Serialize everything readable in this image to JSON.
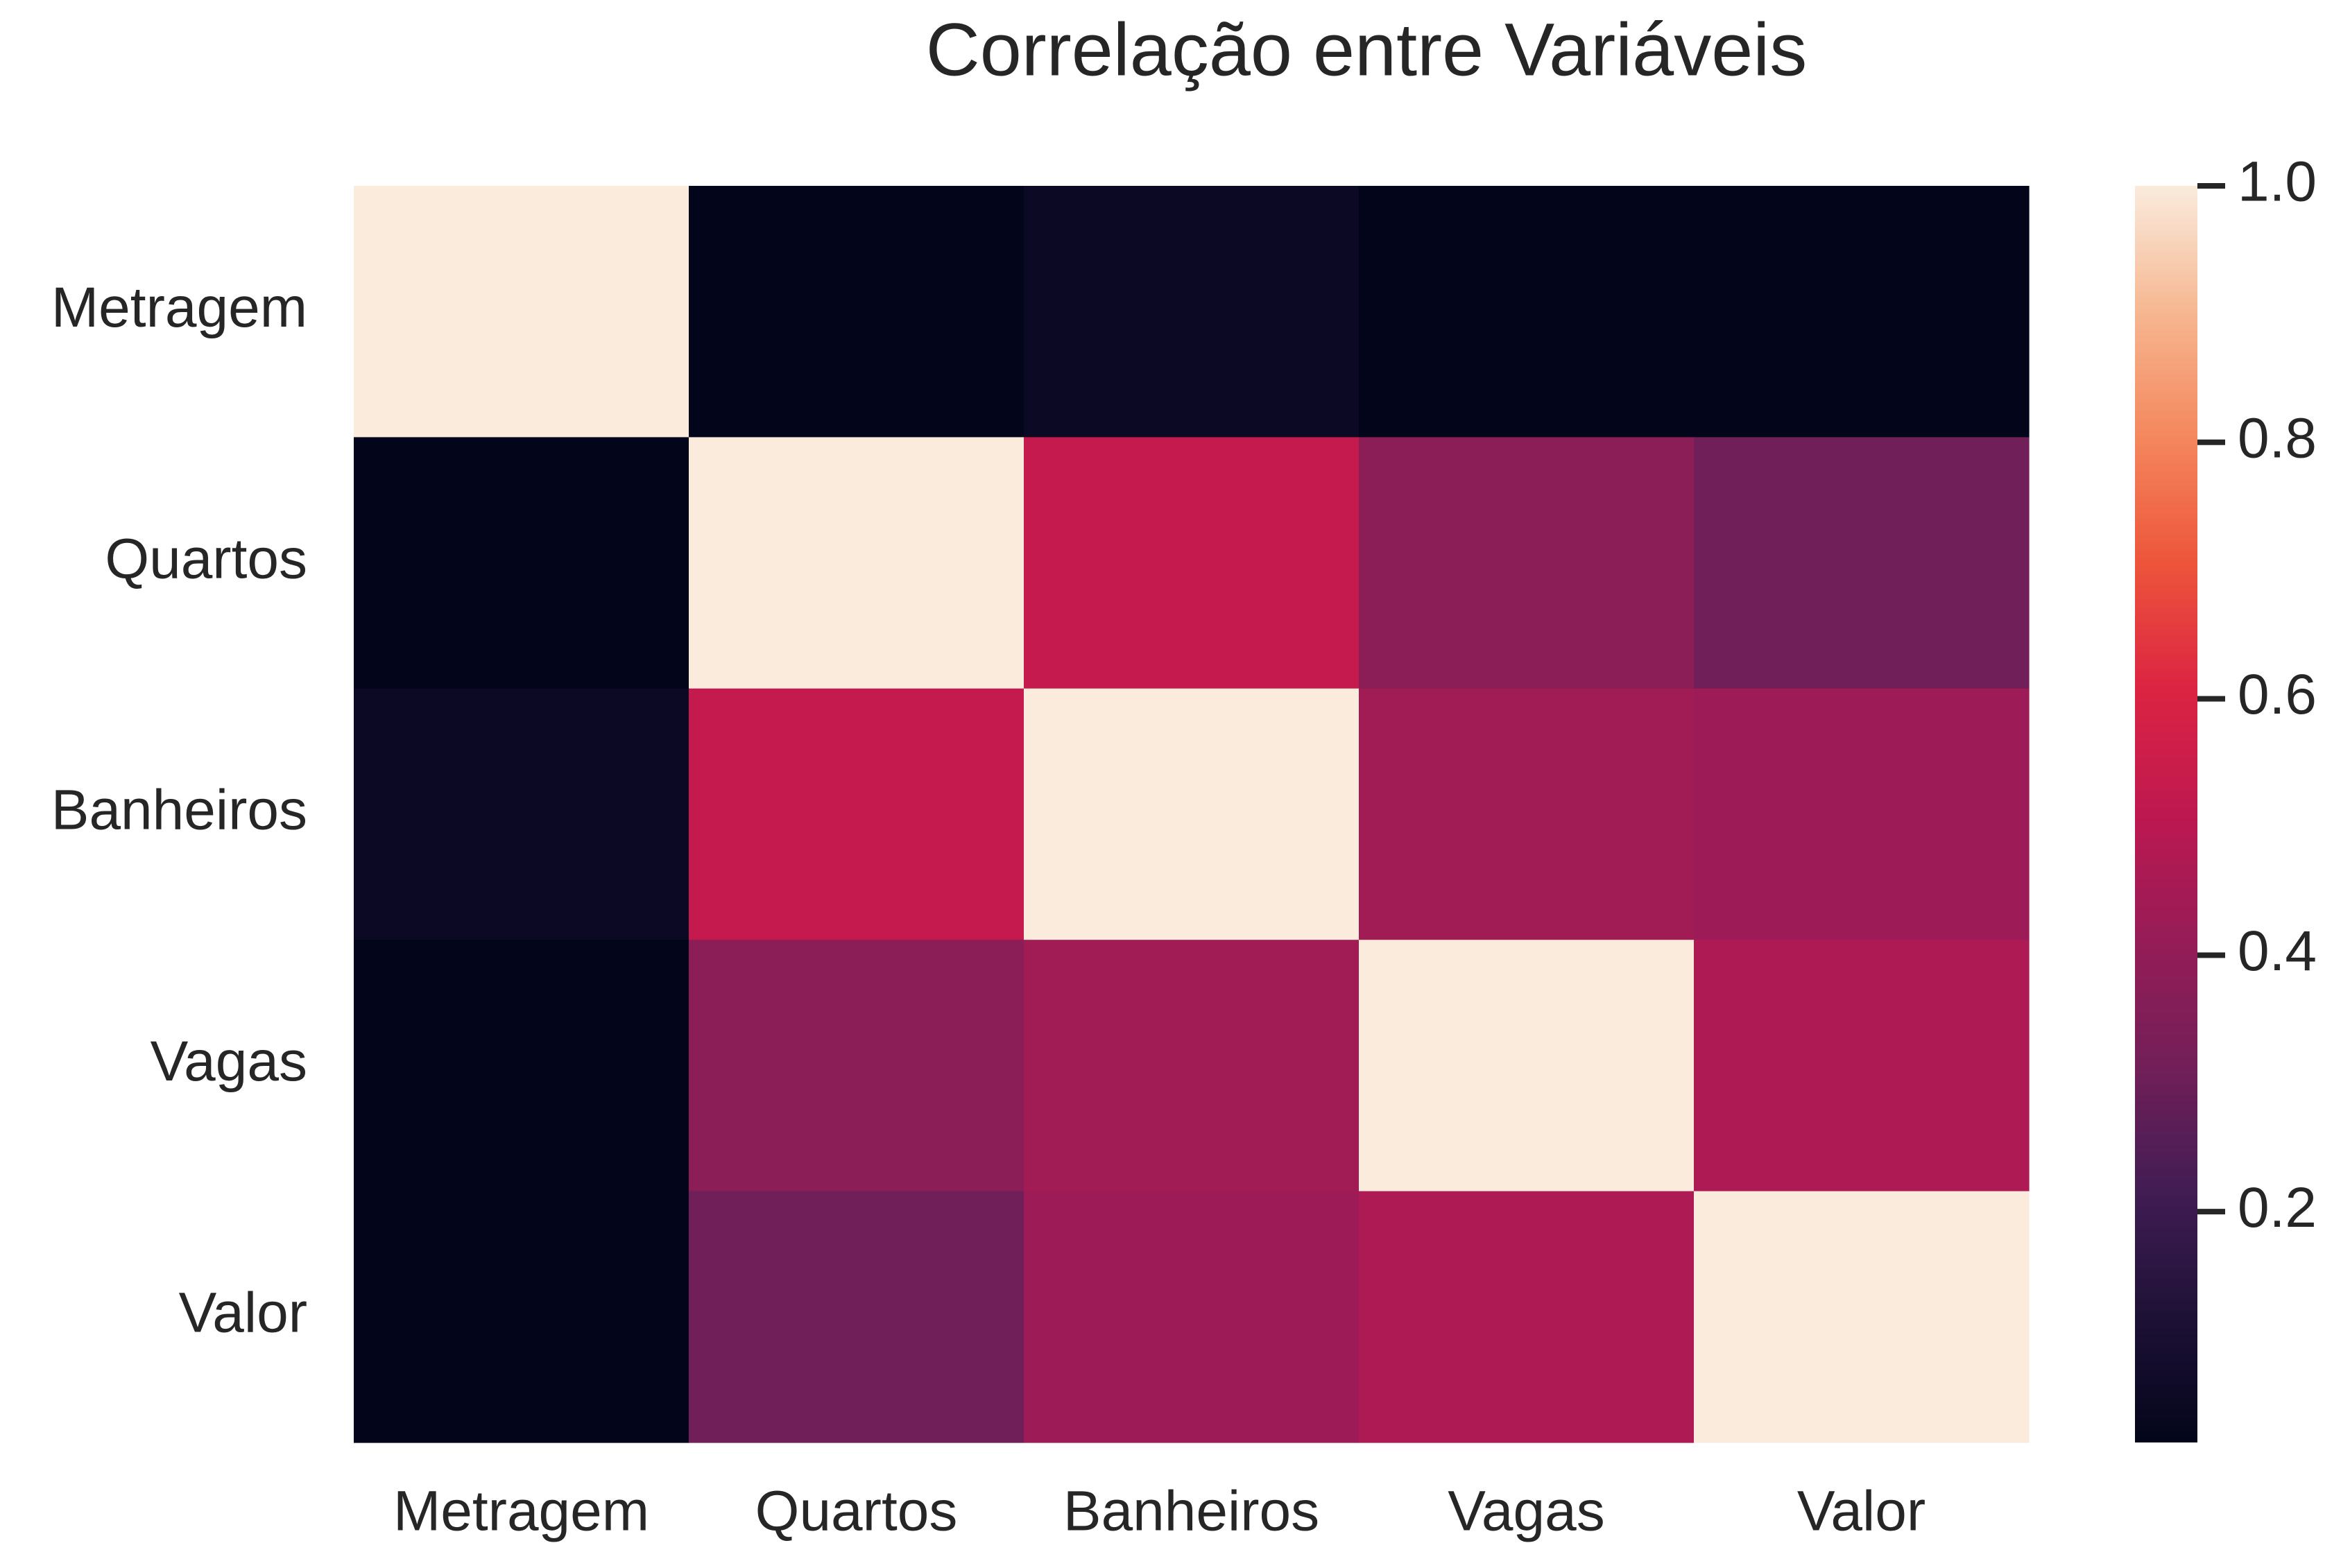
{
  "chart_data": {
    "type": "heatmap",
    "title": "Correlação entre Variáveis",
    "x_labels": [
      "Metragem",
      "Quartos",
      "Banheiros",
      "Vagas",
      "Valor"
    ],
    "y_labels": [
      "Metragem",
      "Quartos",
      "Banheiros",
      "Vagas",
      "Valor"
    ],
    "values": [
      [
        1.0,
        0.02,
        0.05,
        0.02,
        0.02
      ],
      [
        0.02,
        1.0,
        0.53,
        0.38,
        0.31
      ],
      [
        0.05,
        0.53,
        1.0,
        0.44,
        0.43
      ],
      [
        0.02,
        0.38,
        0.44,
        1.0,
        0.47
      ],
      [
        0.02,
        0.31,
        0.43,
        0.47,
        1.0
      ]
    ],
    "colorscale": "rocket",
    "colorbar": {
      "range": [
        0.02,
        1.0
      ],
      "ticks": [
        0.2,
        0.4,
        0.6,
        0.8,
        1.0
      ],
      "tick_labels": [
        "0.2",
        "0.4",
        "0.6",
        "0.8",
        "1.0"
      ]
    },
    "grid": false,
    "legend": "colorbar-right"
  }
}
